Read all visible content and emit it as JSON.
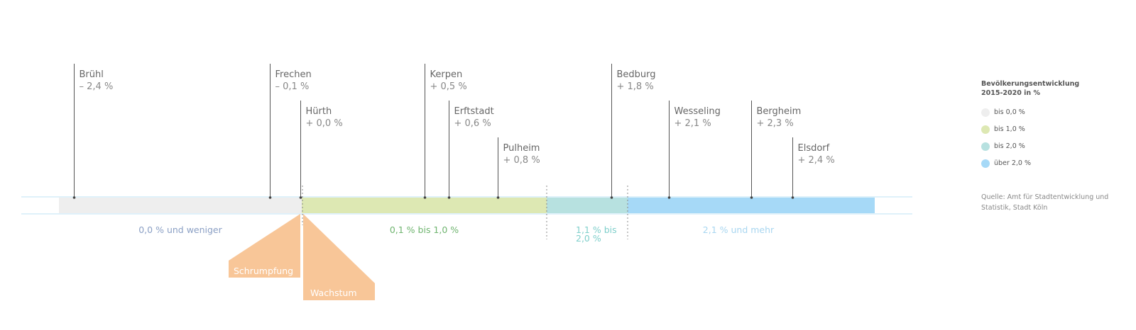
{
  "chart_data": {
    "type": "bar",
    "title": "",
    "xlabel": "",
    "ylabel": "",
    "unit": "%",
    "cities": [
      {
        "name": "Brühl",
        "value": -2.4,
        "label": "– 2,4 %"
      },
      {
        "name": "Frechen",
        "value": -0.1,
        "label": "– 0,1 %"
      },
      {
        "name": "Hürth",
        "value": 0.0,
        "label": "+ 0,0 %"
      },
      {
        "name": "Kerpen",
        "value": 0.5,
        "label": "+ 0,5 %"
      },
      {
        "name": "Erftstadt",
        "value": 0.6,
        "label": "+ 0,6 %"
      },
      {
        "name": "Pulheim",
        "value": 0.8,
        "label": "+ 0,8 %"
      },
      {
        "name": "Bedburg",
        "value": 1.8,
        "label": "+ 1,8 %"
      },
      {
        "name": "Wesseling",
        "value": 2.1,
        "label": "+ 2,1 %"
      },
      {
        "name": "Bergheim",
        "value": 2.3,
        "label": "+ 2,3 %"
      },
      {
        "name": "Elsdorf",
        "value": 2.4,
        "label": "+ 2,4 %"
      }
    ],
    "segments": [
      {
        "label": "0,0 % und weniger",
        "from": -2.6,
        "to": 0.0,
        "color": "#eeeeee",
        "text_color": "#8a9fc4"
      },
      {
        "label": "0,1 % bis 1,0 %",
        "from": 0.0,
        "to": 1.0,
        "color": "#dde8b3",
        "text_color": "#6fb46f"
      },
      {
        "label": "1,1 % bis 2,0 %",
        "from": 1.0,
        "to": 2.0,
        "color": "#b7e1e0",
        "text_color": "#7fcfcb"
      },
      {
        "label": "2,1 % und mehr",
        "from": 2.0,
        "to": 2.6,
        "color": "#a6d9f7",
        "text_color": "#a8d6f0"
      }
    ],
    "annotations": [
      {
        "label": "Schrumpfung",
        "color": "#f8c698"
      },
      {
        "label": "Wachstum",
        "color": "#f8c698"
      }
    ],
    "legend": {
      "title_line1": "Bevölkerungsentwicklung",
      "title_line2": "2015-2020 in %",
      "position": "right",
      "items": [
        {
          "label": "bis 0,0 %",
          "color": "#eeeeee"
        },
        {
          "label": "bis 1,0 %",
          "color": "#dde8b3"
        },
        {
          "label": "bis 2,0 %",
          "color": "#b7e1e0"
        },
        {
          "label": "über 2,0 %",
          "color": "#a6d9f7"
        }
      ]
    },
    "source_line1": "Quelle: Amt für Stadtentwicklung und",
    "source_line2": "Statistik, Stadt Köln"
  }
}
